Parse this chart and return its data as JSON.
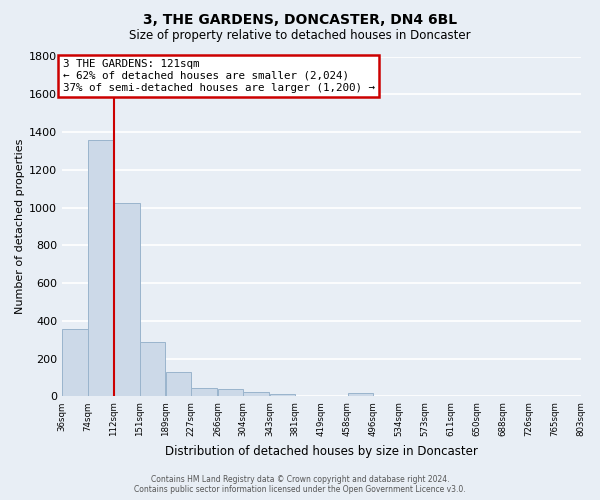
{
  "title": "3, THE GARDENS, DONCASTER, DN4 6BL",
  "subtitle": "Size of property relative to detached houses in Doncaster",
  "xlabel": "Distribution of detached houses by size in Doncaster",
  "ylabel": "Number of detached properties",
  "bin_edges": [
    36,
    74,
    112,
    151,
    189,
    227,
    266,
    304,
    343,
    381,
    419,
    458,
    496,
    534,
    573,
    611,
    650,
    688,
    726,
    765,
    803
  ],
  "bar_heights": [
    355,
    1360,
    1025,
    290,
    130,
    45,
    40,
    25,
    15,
    0,
    0,
    20,
    0,
    0,
    0,
    0,
    0,
    0,
    0,
    0
  ],
  "bar_color": "#ccd9e8",
  "bar_edgecolor": "#9ab4cc",
  "x_tick_labels": [
    "36sqm",
    "74sqm",
    "112sqm",
    "151sqm",
    "189sqm",
    "227sqm",
    "266sqm",
    "304sqm",
    "343sqm",
    "381sqm",
    "419sqm",
    "458sqm",
    "496sqm",
    "534sqm",
    "573sqm",
    "611sqm",
    "650sqm",
    "688sqm",
    "726sqm",
    "765sqm",
    "803sqm"
  ],
  "ylim": [
    0,
    1800
  ],
  "yticks": [
    0,
    200,
    400,
    600,
    800,
    1000,
    1200,
    1400,
    1600,
    1800
  ],
  "vline_x": 112,
  "vline_color": "#cc0000",
  "annotation_title": "3 THE GARDENS: 121sqm",
  "annotation_line1": "← 62% of detached houses are smaller (2,024)",
  "annotation_line2": "37% of semi-detached houses are larger (1,200) →",
  "annotation_box_facecolor": "#ffffff",
  "annotation_box_edgecolor": "#cc0000",
  "bg_color": "#e8eef5",
  "grid_color": "#ffffff",
  "footer_line1": "Contains HM Land Registry data © Crown copyright and database right 2024.",
  "footer_line2": "Contains public sector information licensed under the Open Government Licence v3.0."
}
